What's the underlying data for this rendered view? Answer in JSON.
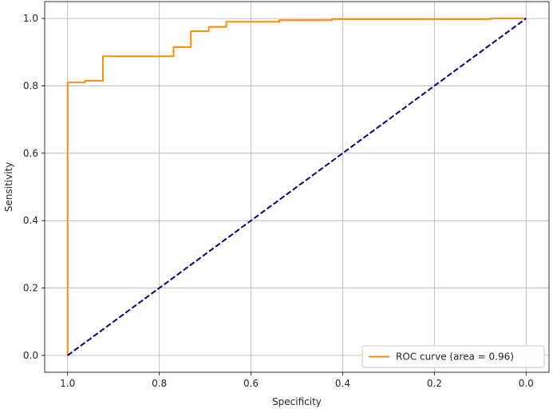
{
  "chart_data": {
    "type": "line",
    "title": "",
    "xlabel": "Specificity",
    "ylabel": "Sensitivity",
    "x_reversed": true,
    "xlim": [
      1.05,
      -0.05
    ],
    "ylim": [
      -0.05,
      1.05
    ],
    "grid": true,
    "legend_placement": "lower-right",
    "x_ticks": [
      1.0,
      0.8,
      0.6,
      0.4,
      0.2,
      0.0
    ],
    "x_tick_labels": [
      "1.0",
      "0.8",
      "0.6",
      "0.4",
      "0.2",
      "0.0"
    ],
    "y_ticks": [
      0.0,
      0.2,
      0.4,
      0.6,
      0.8,
      1.0
    ],
    "y_tick_labels": [
      "0.0",
      "0.2",
      "0.4",
      "0.6",
      "0.8",
      "1.0"
    ],
    "series": [
      {
        "name": "ROC curve (area = 0.96)",
        "color": "#ff8c00",
        "style": "solid",
        "step": true,
        "x": [
          1.0,
          1.0,
          0.962,
          0.962,
          0.923,
          0.923,
          0.769,
          0.769,
          0.731,
          0.731,
          0.692,
          0.692,
          0.654,
          0.654,
          0.538,
          0.538,
          0.423,
          0.423,
          0.077,
          0.077,
          0.0
        ],
        "y": [
          0.0,
          0.81,
          0.81,
          0.815,
          0.815,
          0.888,
          0.888,
          0.915,
          0.915,
          0.962,
          0.962,
          0.975,
          0.975,
          0.99,
          0.99,
          0.995,
          0.995,
          0.998,
          0.998,
          1.0,
          1.0
        ]
      },
      {
        "name": "",
        "color": "#000080",
        "style": "dashed",
        "step": false,
        "x": [
          1.0,
          0.0
        ],
        "y": [
          0.0,
          1.0
        ]
      }
    ],
    "legend_entries": [
      "ROC curve (area = 0.96)"
    ]
  }
}
